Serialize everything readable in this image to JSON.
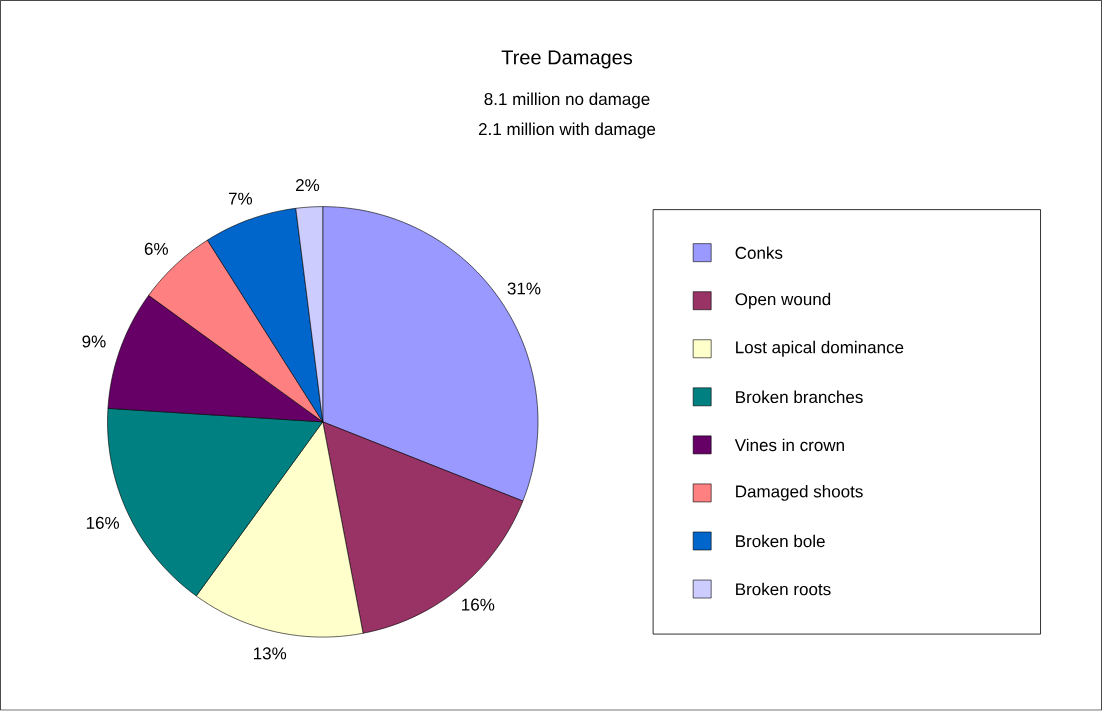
{
  "chart_data": {
    "type": "pie",
    "title": "Tree Damages",
    "subtitle": "8.1 million no damage",
    "annotations": [
      "2.1 million with damage"
    ],
    "categories": [
      "Conks",
      "Open wound",
      "Lost apical dominance",
      "Broken branches",
      "Vines in crown",
      "Damaged shoots",
      "Broken bole",
      "Broken roots"
    ],
    "values": [
      31,
      16,
      13,
      16,
      9,
      6,
      7,
      2
    ],
    "value_labels": [
      "31%",
      "16%",
      "13%",
      "16%",
      "9%",
      "6%",
      "7%",
      "2%"
    ],
    "colors": [
      "#9999ff",
      "#993366",
      "#ffffcc",
      "#008080",
      "#660066",
      "#ff8080",
      "#0066cc",
      "#ccccff"
    ],
    "legend": "right"
  }
}
